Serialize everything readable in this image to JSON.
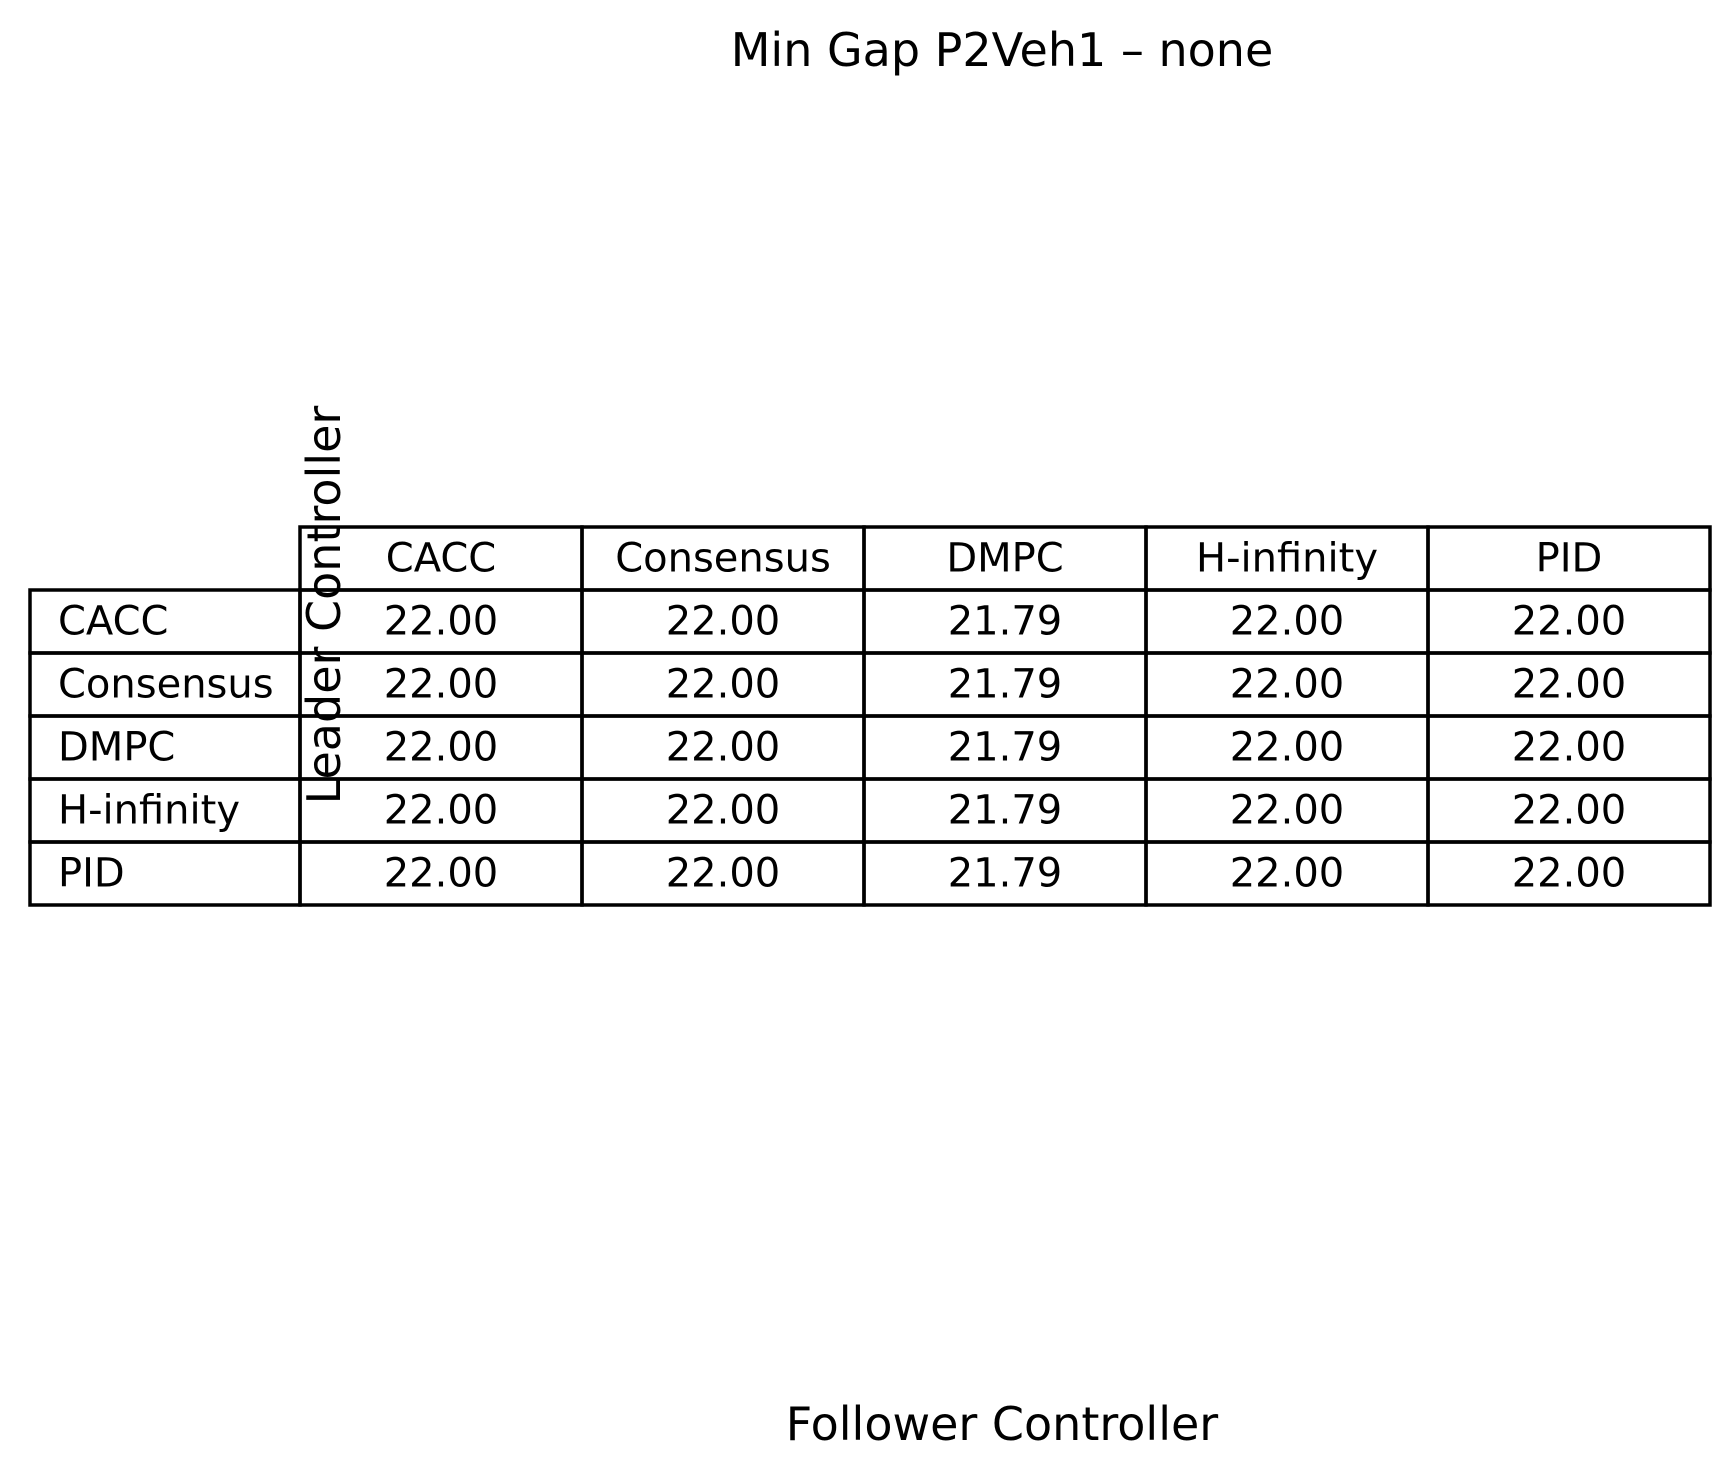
{
  "chart_data": {
    "type": "table",
    "title": "Min Gap P2Veh1 – none",
    "xlabel": "Follower Controller",
    "ylabel": "Leader Controller",
    "columns": [
      "CACC",
      "Consensus",
      "DMPC",
      "H-infinity",
      "PID"
    ],
    "rows": [
      "CACC",
      "Consensus",
      "DMPC",
      "H-infinity",
      "PID"
    ],
    "cells": [
      [
        "22.00",
        "22.00",
        "21.79",
        "22.00",
        "22.00"
      ],
      [
        "22.00",
        "22.00",
        "21.79",
        "22.00",
        "22.00"
      ],
      [
        "22.00",
        "22.00",
        "21.79",
        "22.00",
        "22.00"
      ],
      [
        "22.00",
        "22.00",
        "21.79",
        "22.00",
        "22.00"
      ],
      [
        "22.00",
        "22.00",
        "21.79",
        "22.00",
        "22.00"
      ]
    ]
  }
}
